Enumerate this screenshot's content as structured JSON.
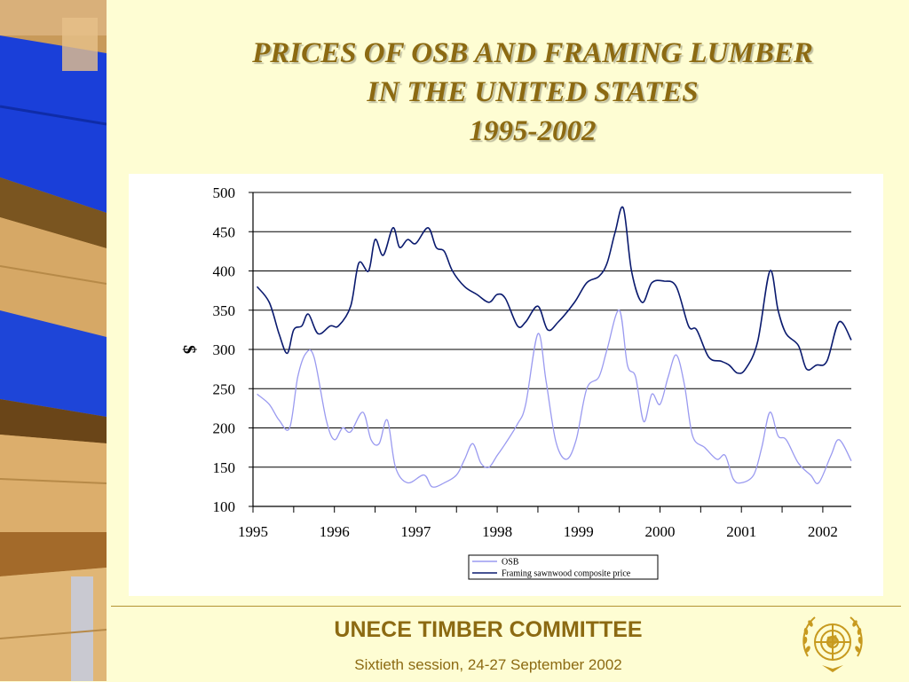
{
  "title_lines": [
    "PRICES OF OSB AND FRAMING LUMBER",
    "IN THE UNITED STATES",
    "1995-2002"
  ],
  "footer": {
    "title": "UNECE TIMBER COMMITTEE",
    "subtitle": "Sixtieth session, 24-27 September 2002",
    "logo_icon": "un-emblem-icon"
  },
  "colors": {
    "background": "#fefdd3",
    "accent": "#8c6a12",
    "osb": "#9a9af0",
    "framing": "#0a1a6e"
  },
  "chart_data": {
    "type": "line",
    "title": "",
    "xlabel": "",
    "ylabel": "$",
    "xlim": [
      1995.0,
      2002.35
    ],
    "ylim": [
      100,
      500
    ],
    "yticks": [
      100,
      150,
      200,
      250,
      300,
      350,
      400,
      450,
      500
    ],
    "xticks": [
      1995,
      1996,
      1997,
      1998,
      1999,
      2000,
      2001,
      2002
    ],
    "grid": "horizontal",
    "legend_position": "bottom-right",
    "series": [
      {
        "name": "OSB",
        "x": [
          1995.05,
          1995.2,
          1995.32,
          1995.45,
          1995.55,
          1995.65,
          1995.75,
          1995.9,
          1996.0,
          1996.1,
          1996.2,
          1996.35,
          1996.45,
          1996.55,
          1996.65,
          1996.75,
          1996.9,
          1997.1,
          1997.2,
          1997.35,
          1997.5,
          1997.6,
          1997.7,
          1997.8,
          1997.9,
          1998.0,
          1998.1,
          1998.25,
          1998.35,
          1998.5,
          1998.6,
          1998.72,
          1998.85,
          1998.97,
          1999.1,
          1999.25,
          1999.35,
          1999.5,
          1999.6,
          1999.7,
          1999.8,
          1999.9,
          2000.0,
          2000.1,
          2000.2,
          2000.3,
          2000.4,
          2000.55,
          2000.7,
          2000.8,
          2000.9,
          2001.0,
          2001.15,
          2001.25,
          2001.35,
          2001.45,
          2001.55,
          2001.7,
          2001.85,
          2001.95,
          2002.1,
          2002.2,
          2002.35
        ],
        "y": [
          243,
          230,
          210,
          200,
          265,
          295,
          290,
          210,
          185,
          200,
          195,
          220,
          185,
          180,
          210,
          150,
          130,
          140,
          125,
          130,
          140,
          160,
          180,
          155,
          150,
          165,
          180,
          205,
          230,
          320,
          260,
          183,
          160,
          185,
          250,
          265,
          300,
          350,
          280,
          265,
          208,
          243,
          230,
          265,
          293,
          255,
          190,
          175,
          160,
          165,
          135,
          130,
          140,
          175,
          220,
          190,
          185,
          155,
          140,
          130,
          165,
          185,
          158
        ]
      },
      {
        "name": "Framing sawnwood composite price",
        "x": [
          1995.05,
          1995.2,
          1995.32,
          1995.42,
          1995.5,
          1995.6,
          1995.68,
          1995.8,
          1995.95,
          1996.05,
          1996.2,
          1996.3,
          1996.42,
          1996.5,
          1996.6,
          1996.72,
          1996.8,
          1996.9,
          1997.0,
          1997.15,
          1997.25,
          1997.35,
          1997.45,
          1997.6,
          1997.75,
          1997.9,
          1998.0,
          1998.1,
          1998.25,
          1998.35,
          1998.5,
          1998.62,
          1998.75,
          1998.95,
          1999.1,
          1999.25,
          1999.35,
          1999.45,
          1999.55,
          1999.65,
          1999.78,
          1999.9,
          2000.05,
          2000.2,
          2000.35,
          2000.45,
          2000.6,
          2000.75,
          2000.85,
          2000.95,
          2001.05,
          2001.2,
          2001.35,
          2001.45,
          2001.55,
          2001.7,
          2001.8,
          2001.92,
          2002.05,
          2002.2,
          2002.35
        ],
        "y": [
          380,
          360,
          320,
          295,
          325,
          330,
          345,
          320,
          330,
          330,
          355,
          410,
          400,
          440,
          420,
          455,
          430,
          440,
          435,
          455,
          430,
          425,
          400,
          380,
          370,
          360,
          370,
          365,
          330,
          335,
          355,
          325,
          335,
          360,
          385,
          393,
          410,
          450,
          480,
          400,
          360,
          385,
          387,
          380,
          330,
          325,
          290,
          285,
          280,
          270,
          275,
          310,
          400,
          350,
          320,
          305,
          275,
          280,
          285,
          335,
          312
        ]
      }
    ]
  }
}
